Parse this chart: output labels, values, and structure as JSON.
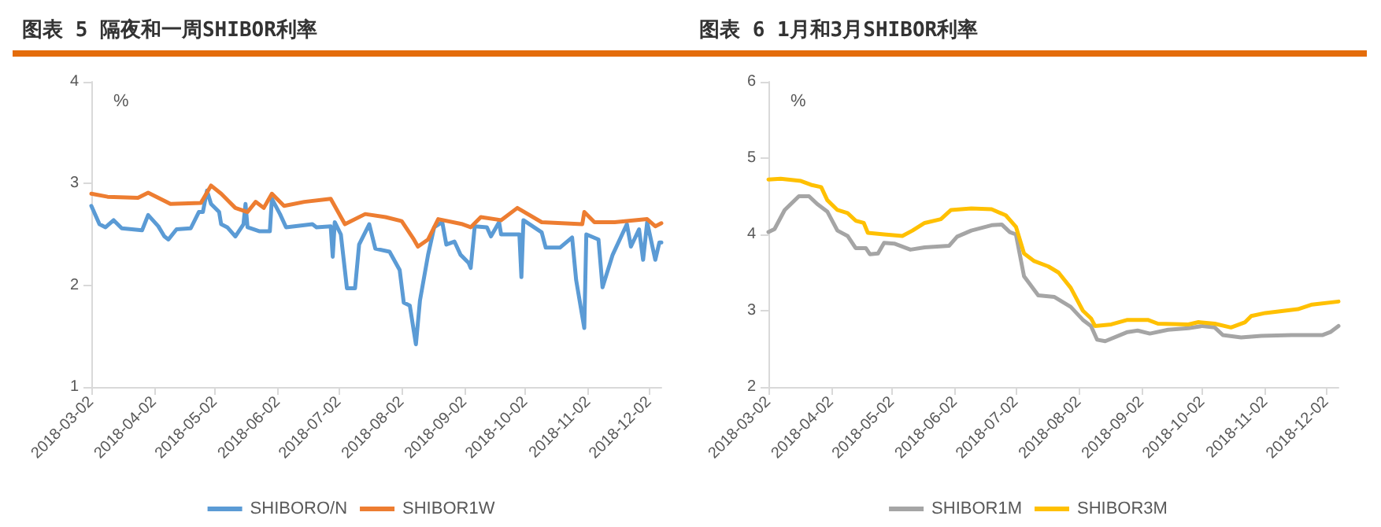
{
  "chart_data": [
    {
      "type": "line",
      "title": "图表 5  隔夜和一周SHIBOR利率",
      "ylabel": "%",
      "xlim": [
        "2018-03-02",
        "2018-12-08"
      ],
      "xticks": [
        "2018-03-02",
        "2018-04-02",
        "2018-05-02",
        "2018-06-02",
        "2018-07-02",
        "2018-08-02",
        "2018-09-02",
        "2018-10-02",
        "2018-11-02",
        "2018-12-02"
      ],
      "ylim": [
        1,
        4
      ],
      "yticks": [
        1,
        2,
        3,
        4
      ],
      "grid": false,
      "legend": "bottom",
      "marker": "none",
      "line_style": "solid",
      "series": [
        {
          "name": "SHIBORO/N",
          "color": "#5b9bd5",
          "x": [
            "2018-03-02",
            "2018-03-06",
            "2018-03-09",
            "2018-03-13",
            "2018-03-17",
            "2018-03-27",
            "2018-03-30",
            "2018-04-04",
            "2018-04-07",
            "2018-04-09",
            "2018-04-13",
            "2018-04-20",
            "2018-04-24",
            "2018-04-26",
            "2018-04-28",
            "2018-04-30",
            "2018-05-04",
            "2018-05-05",
            "2018-05-08",
            "2018-05-12",
            "2018-05-16",
            "2018-05-17",
            "2018-05-18",
            "2018-05-24",
            "2018-05-29",
            "2018-05-30",
            "2018-06-03",
            "2018-06-06",
            "2018-06-19",
            "2018-06-21",
            "2018-06-28",
            "2018-06-29",
            "2018-06-30",
            "2018-07-03",
            "2018-07-06",
            "2018-07-10",
            "2018-07-12",
            "2018-07-17",
            "2018-07-20",
            "2018-07-27",
            "2018-08-01",
            "2018-08-03",
            "2018-08-06",
            "2018-08-09",
            "2018-08-11",
            "2018-08-15",
            "2018-08-18",
            "2018-08-22",
            "2018-08-24",
            "2018-08-28",
            "2018-08-31",
            "2018-09-04",
            "2018-09-05",
            "2018-09-07",
            "2018-09-13",
            "2018-09-15",
            "2018-09-19",
            "2018-09-20",
            "2018-09-29",
            "2018-09-30",
            "2018-10-01",
            "2018-10-10",
            "2018-10-12",
            "2018-10-19",
            "2018-10-25",
            "2018-10-27",
            "2018-10-31",
            "2018-11-01",
            "2018-11-07",
            "2018-11-09",
            "2018-11-14",
            "2018-11-21",
            "2018-11-23",
            "2018-11-27",
            "2018-11-29",
            "2018-12-01",
            "2018-12-05",
            "2018-12-07",
            "2018-12-08"
          ],
          "values": [
            2.78,
            2.6,
            2.57,
            2.64,
            2.56,
            2.54,
            2.69,
            2.58,
            2.48,
            2.45,
            2.55,
            2.56,
            2.72,
            2.72,
            2.93,
            2.8,
            2.72,
            2.6,
            2.57,
            2.48,
            2.6,
            2.8,
            2.57,
            2.53,
            2.53,
            2.85,
            2.7,
            2.57,
            2.6,
            2.57,
            2.58,
            2.28,
            2.62,
            2.5,
            1.97,
            1.97,
            2.4,
            2.6,
            2.36,
            2.33,
            2.15,
            1.83,
            1.8,
            1.42,
            1.85,
            2.3,
            2.57,
            2.62,
            2.4,
            2.43,
            2.3,
            2.22,
            2.17,
            2.58,
            2.57,
            2.48,
            2.62,
            2.5,
            2.5,
            2.08,
            2.64,
            2.52,
            2.37,
            2.37,
            2.47,
            2.05,
            1.58,
            2.5,
            2.45,
            1.98,
            2.3,
            2.6,
            2.38,
            2.55,
            2.25,
            2.62,
            2.25,
            2.42,
            2.42
          ]
        },
        {
          "name": "SHIBOR1W",
          "color": "#ed7d31",
          "x": [
            "2018-03-02",
            "2018-03-10",
            "2018-03-25",
            "2018-03-30",
            "2018-04-05",
            "2018-04-10",
            "2018-04-25",
            "2018-04-30",
            "2018-05-05",
            "2018-05-12",
            "2018-05-18",
            "2018-05-22",
            "2018-05-26",
            "2018-05-30",
            "2018-06-05",
            "2018-06-15",
            "2018-06-28",
            "2018-07-05",
            "2018-07-15",
            "2018-07-25",
            "2018-08-02",
            "2018-08-08",
            "2018-08-10",
            "2018-08-15",
            "2018-08-20",
            "2018-09-01",
            "2018-09-05",
            "2018-09-10",
            "2018-09-20",
            "2018-09-28",
            "2018-10-10",
            "2018-10-20",
            "2018-10-30",
            "2018-10-31",
            "2018-11-05",
            "2018-11-15",
            "2018-11-25",
            "2018-12-01",
            "2018-12-05",
            "2018-12-08"
          ],
          "values": [
            2.9,
            2.87,
            2.86,
            2.91,
            2.85,
            2.8,
            2.81,
            2.98,
            2.9,
            2.76,
            2.72,
            2.82,
            2.76,
            2.9,
            2.78,
            2.82,
            2.85,
            2.6,
            2.7,
            2.67,
            2.63,
            2.45,
            2.38,
            2.45,
            2.65,
            2.6,
            2.57,
            2.67,
            2.64,
            2.76,
            2.62,
            2.61,
            2.6,
            2.72,
            2.62,
            2.62,
            2.64,
            2.65,
            2.58,
            2.61
          ]
        }
      ]
    },
    {
      "type": "line",
      "title": "图表 6  1月和3月SHIBOR利率",
      "ylabel": "%",
      "xlim": [
        "2018-03-02",
        "2018-12-08"
      ],
      "xticks": [
        "2018-03-02",
        "2018-04-02",
        "2018-05-02",
        "2018-06-02",
        "2018-07-02",
        "2018-08-02",
        "2018-09-02",
        "2018-10-02",
        "2018-11-02",
        "2018-12-02"
      ],
      "ylim": [
        2,
        6
      ],
      "yticks": [
        2,
        3,
        4,
        5,
        6
      ],
      "grid": false,
      "legend": "bottom",
      "marker": "none",
      "line_style": "solid",
      "series": [
        {
          "name": "SHIBOR1M",
          "color": "#a5a5a5",
          "x": [
            "2018-03-02",
            "2018-03-05",
            "2018-03-10",
            "2018-03-17",
            "2018-03-22",
            "2018-03-26",
            "2018-03-31",
            "2018-04-05",
            "2018-04-10",
            "2018-04-14",
            "2018-04-19",
            "2018-04-21",
            "2018-04-25",
            "2018-04-28",
            "2018-05-03",
            "2018-05-11",
            "2018-05-18",
            "2018-05-30",
            "2018-06-03",
            "2018-06-10",
            "2018-06-20",
            "2018-06-25",
            "2018-06-29",
            "2018-07-02",
            "2018-07-06",
            "2018-07-13",
            "2018-07-21",
            "2018-07-29",
            "2018-08-04",
            "2018-08-08",
            "2018-08-11",
            "2018-08-15",
            "2018-08-26",
            "2018-08-31",
            "2018-09-06",
            "2018-09-15",
            "2018-09-25",
            "2018-10-02",
            "2018-10-08",
            "2018-10-12",
            "2018-10-21",
            "2018-10-31",
            "2018-11-15",
            "2018-11-30",
            "2018-12-04",
            "2018-12-08"
          ],
          "values": [
            4.03,
            4.07,
            4.32,
            4.5,
            4.5,
            4.4,
            4.3,
            4.05,
            3.98,
            3.82,
            3.82,
            3.74,
            3.75,
            3.89,
            3.88,
            3.8,
            3.83,
            3.85,
            3.97,
            4.05,
            4.12,
            4.13,
            4.03,
            4.0,
            3.45,
            3.2,
            3.18,
            3.05,
            2.88,
            2.8,
            2.62,
            2.6,
            2.72,
            2.74,
            2.7,
            2.75,
            2.77,
            2.8,
            2.78,
            2.68,
            2.65,
            2.67,
            2.68,
            2.68,
            2.72,
            2.8
          ]
        },
        {
          "name": "SHIBOR3M",
          "color": "#ffc000",
          "x": [
            "2018-03-02",
            "2018-03-08",
            "2018-03-18",
            "2018-03-23",
            "2018-03-28",
            "2018-03-31",
            "2018-04-05",
            "2018-04-10",
            "2018-04-14",
            "2018-04-18",
            "2018-04-20",
            "2018-04-28",
            "2018-05-07",
            "2018-05-12",
            "2018-05-18",
            "2018-05-26",
            "2018-05-31",
            "2018-06-10",
            "2018-06-20",
            "2018-06-27",
            "2018-07-02",
            "2018-07-06",
            "2018-07-11",
            "2018-07-18",
            "2018-07-23",
            "2018-07-29",
            "2018-08-04",
            "2018-08-08",
            "2018-08-10",
            "2018-08-18",
            "2018-08-26",
            "2018-09-05",
            "2018-09-10",
            "2018-09-25",
            "2018-09-30",
            "2018-10-08",
            "2018-10-16",
            "2018-10-23",
            "2018-10-26",
            "2018-11-02",
            "2018-11-18",
            "2018-11-25",
            "2018-12-08"
          ],
          "values": [
            4.72,
            4.73,
            4.7,
            4.65,
            4.62,
            4.45,
            4.32,
            4.28,
            4.18,
            4.15,
            4.02,
            4.0,
            3.98,
            4.05,
            4.15,
            4.2,
            4.32,
            4.34,
            4.33,
            4.25,
            4.1,
            3.75,
            3.65,
            3.58,
            3.5,
            3.3,
            3.0,
            2.9,
            2.8,
            2.82,
            2.88,
            2.88,
            2.83,
            2.82,
            2.85,
            2.83,
            2.78,
            2.85,
            2.93,
            2.97,
            3.02,
            3.08,
            3.12
          ]
        }
      ]
    }
  ]
}
